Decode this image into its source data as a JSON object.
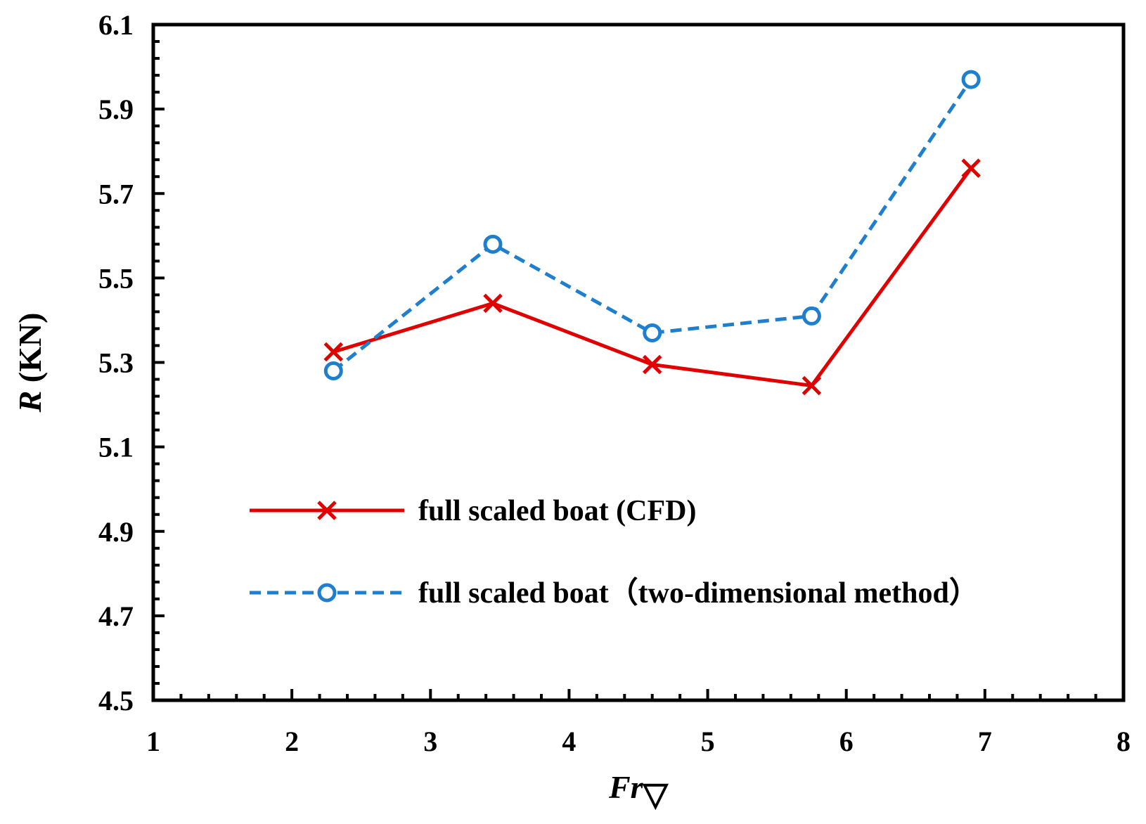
{
  "chart_data": {
    "type": "line",
    "title": "",
    "xlabel_main": "Fr",
    "xlabel_sub": "▽",
    "ylabel_var": "R",
    "ylabel_unit": " (KN)",
    "xlim": [
      1,
      8
    ],
    "ylim": [
      4.5,
      6.1
    ],
    "xticks": [
      1,
      2,
      3,
      4,
      5,
      6,
      7,
      8
    ],
    "xtick_labels": [
      "1",
      "2",
      "3",
      "4",
      "5",
      "6",
      "7",
      "8"
    ],
    "yticks": [
      4.5,
      4.7,
      4.9,
      5.1,
      5.3,
      5.5,
      5.7,
      5.9,
      6.1
    ],
    "ytick_labels": [
      "4.5",
      "4.7",
      "4.9",
      "5.1",
      "5.3",
      "5.5",
      "5.7",
      "5.9",
      "6.1"
    ],
    "grid": false,
    "legend_position": "lower-center",
    "series": [
      {
        "name": "full scaled boat (CFD)",
        "color": "#e00000",
        "marker": "x",
        "dash": "solid",
        "x": [
          2.3,
          3.45,
          4.6,
          5.75,
          6.9
        ],
        "y": [
          5.325,
          5.44,
          5.295,
          5.245,
          5.76
        ]
      },
      {
        "name": "full scaled boat（two-dimensional method）",
        "color": "#1f7fcf",
        "marker": "o",
        "dash": "dashed",
        "x": [
          2.3,
          3.45,
          4.6,
          5.75,
          6.9
        ],
        "y": [
          5.28,
          5.58,
          5.37,
          5.41,
          5.97
        ]
      }
    ]
  }
}
